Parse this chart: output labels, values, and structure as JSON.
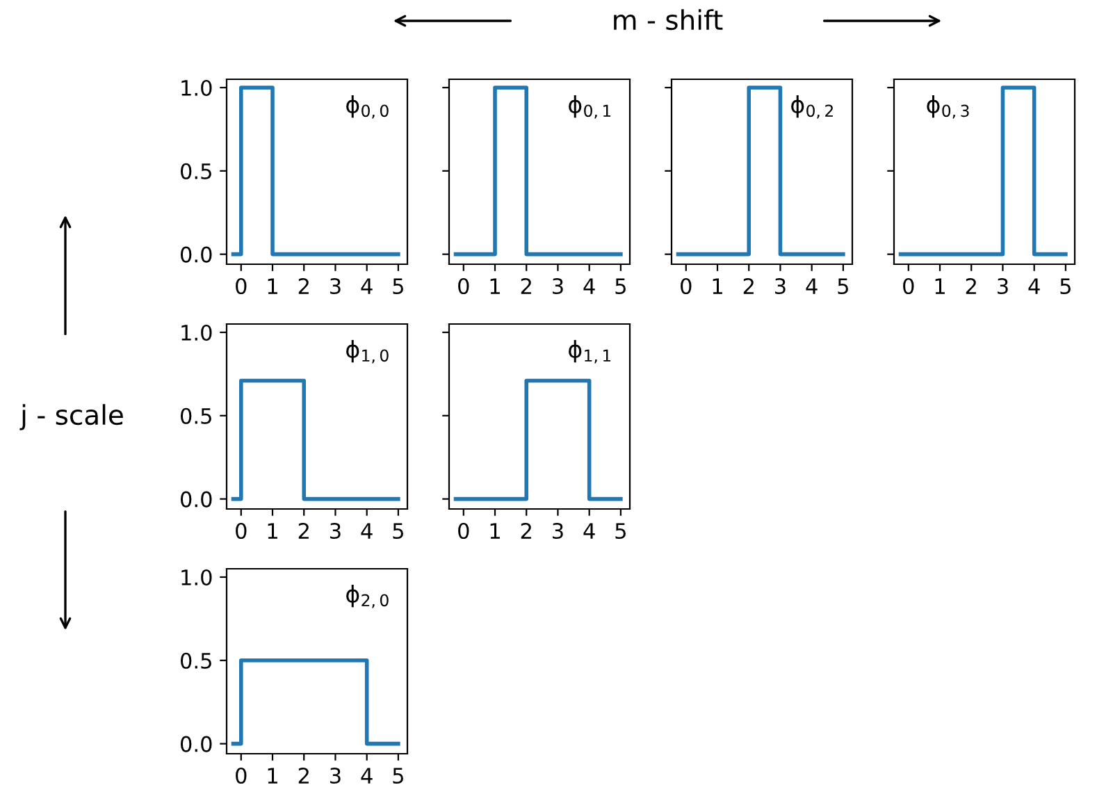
{
  "chart_data": [
    {
      "type": "step",
      "x": [
        -0.25,
        0,
        1,
        5
      ],
      "values": [
        0,
        1,
        0,
        0
      ],
      "color": "#1f77b4",
      "xlim": [
        -0.46,
        5.29
      ],
      "ylim": [
        -0.06,
        1.05
      ],
      "xticks": [
        0,
        1,
        2,
        3,
        4,
        5
      ],
      "yticks": [
        {
          "value": 0,
          "label": "0.0"
        },
        {
          "value": 0.5,
          "label": "0.5"
        },
        {
          "value": 1,
          "label": "1.0"
        }
      ],
      "annotations": [
        "ϕ$_{0,0}$",
        "m - shift",
        "j - scale"
      ]
    },
    {
      "type": "step",
      "x": [
        -0.25,
        1,
        2,
        5
      ],
      "values": [
        0,
        1,
        0,
        0
      ],
      "color": "#1f77b4",
      "xlim": [
        -0.46,
        5.29
      ],
      "ylim": [
        -0.06,
        1.05
      ],
      "xticks": [
        0,
        1,
        2,
        3,
        4,
        5
      ],
      "yticks": [
        {
          "value": 0,
          "label": null
        },
        {
          "value": 0.5,
          "label": null
        },
        {
          "value": 1,
          "label": null
        }
      ],
      "tick_labels": "x",
      "annotations": [
        "ϕ$_{0,1}$"
      ]
    },
    {
      "type": "step",
      "x": [
        -0.25,
        2,
        3,
        5
      ],
      "values": [
        0,
        1,
        0,
        0
      ],
      "color": "#1f77b4",
      "xlim": [
        -0.46,
        5.29
      ],
      "ylim": [
        -0.06,
        1.05
      ],
      "xticks": [
        0,
        1,
        2,
        3,
        4,
        5
      ],
      "yticks": [
        {
          "value": 0,
          "label": null
        },
        {
          "value": 0.5,
          "label": null
        },
        {
          "value": 1,
          "label": null
        }
      ],
      "tick_labels": "x",
      "annotations": [
        "ϕ$_{0,2}$"
      ]
    },
    {
      "type": "step",
      "x": [
        -0.25,
        3,
        4,
        5
      ],
      "values": [
        0,
        1,
        0,
        0
      ],
      "color": "#1f77b4",
      "xlim": [
        -0.46,
        5.29
      ],
      "ylim": [
        -0.06,
        1.05
      ],
      "xticks": [
        0,
        1,
        2,
        3,
        4,
        5
      ],
      "yticks": [
        {
          "value": 0,
          "label": null
        },
        {
          "value": 0.5,
          "label": null
        },
        {
          "value": 1,
          "label": null
        }
      ],
      "tick_labels": "x",
      "annotations": [
        "ϕ$_{0,3}$"
      ]
    },
    {
      "type": "step",
      "x": [
        -0.25,
        0,
        2,
        5
      ],
      "values": [
        0,
        0.71,
        0,
        0
      ],
      "color": "#1f77b4",
      "xlim": [
        -0.46,
        5.29
      ],
      "ylim": [
        -0.06,
        1.05
      ],
      "xticks": [
        0,
        1,
        2,
        3,
        4,
        5
      ],
      "yticks": [
        {
          "value": 0,
          "label": "0.0"
        },
        {
          "value": 0.5,
          "label": "0.5"
        },
        {
          "value": 1,
          "label": "1.0"
        }
      ],
      "annotations": [
        "ϕ$_{1,0}$"
      ]
    },
    {
      "type": "step",
      "x": [
        -0.25,
        2,
        4,
        5
      ],
      "values": [
        0,
        0.71,
        0,
        0
      ],
      "color": "#1f77b4",
      "xlim": [
        -0.46,
        5.29
      ],
      "ylim": [
        -0.06,
        1.05
      ],
      "xticks": [
        0,
        1,
        2,
        3,
        4,
        5
      ],
      "yticks": [
        {
          "value": 0,
          "label": null
        },
        {
          "value": 0.5,
          "label": null
        },
        {
          "value": 1,
          "label": null
        }
      ],
      "tick_labels": "x",
      "annotations": [
        "ϕ$_{1,1}$"
      ]
    },
    {
      "type": "step",
      "x": [
        -0.25,
        0,
        4,
        5
      ],
      "values": [
        0,
        0.5,
        0,
        0
      ],
      "color": "#1f77b4",
      "xlim": [
        -0.46,
        5.29
      ],
      "ylim": [
        -0.06,
        1.05
      ],
      "xticks": [
        0,
        1,
        2,
        3,
        4,
        5
      ],
      "yticks": [
        {
          "value": 0,
          "label": "0.0"
        },
        {
          "value": 0.5,
          "label": "0.5"
        },
        {
          "value": 1,
          "label": "1.0"
        }
      ],
      "annotations": [
        "ϕ$_{2,0}$"
      ]
    }
  ]
}
